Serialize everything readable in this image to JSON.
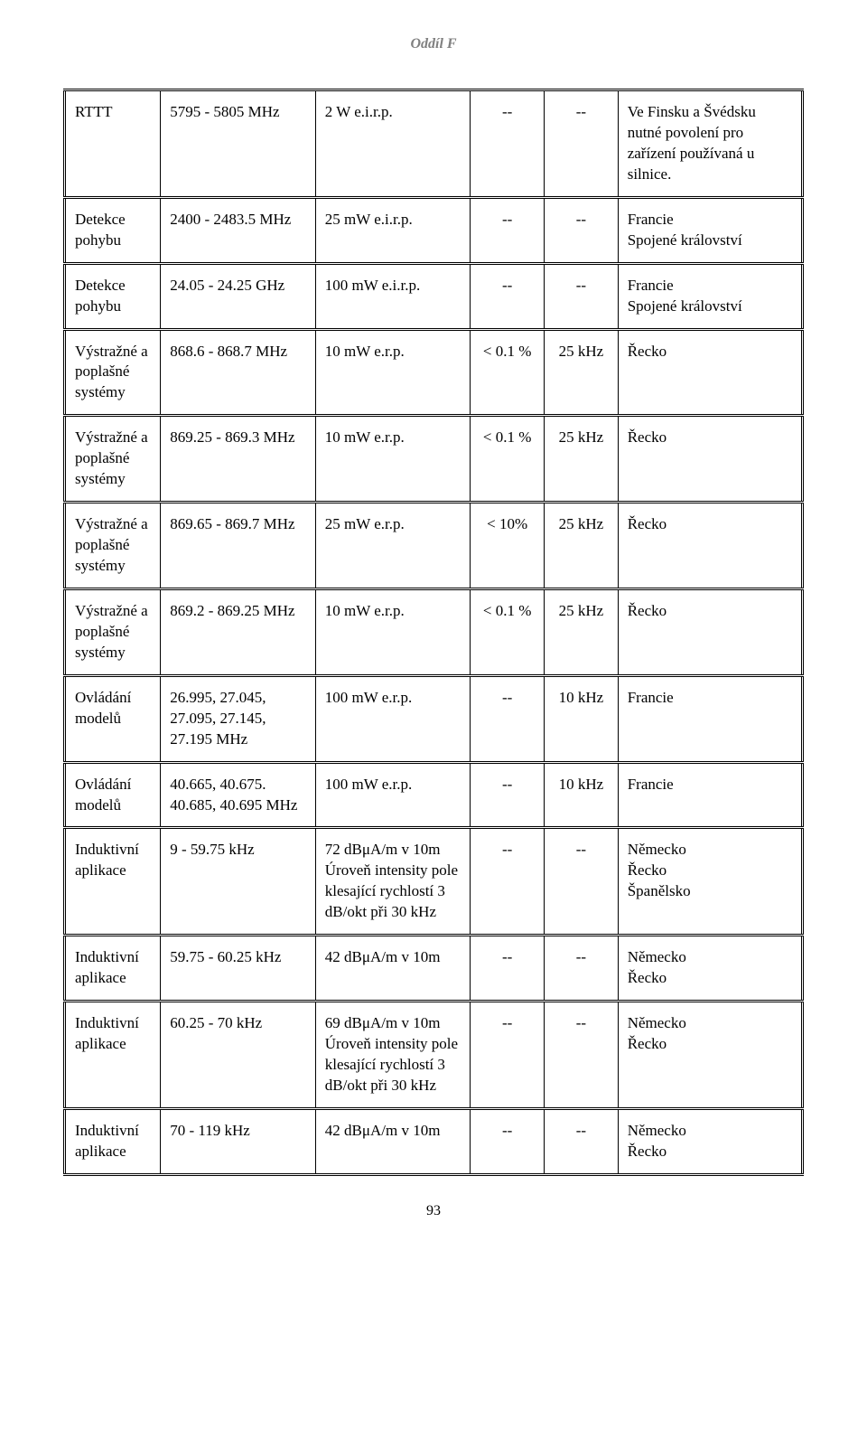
{
  "header": {
    "section": "Oddíl F"
  },
  "table": {
    "columns_count": 6,
    "rows": [
      {
        "c1": "RTTT",
        "c2": "5795 - 5805 MHz",
        "c3": "2 W e.i.r.p.",
        "c4": "--",
        "c5": "--",
        "c6": "Ve Finsku a Švédsku nutné povolení pro zařízení používaná u silnice."
      },
      {
        "c1": "Detekce pohybu",
        "c2": "2400 - 2483.5 MHz",
        "c3": "25 mW e.i.r.p.",
        "c4": "--",
        "c5": "--",
        "c6": "Francie\nSpojené království"
      },
      {
        "c1": "Detekce pohybu",
        "c2": "24.05 - 24.25 GHz",
        "c3": "100 mW e.i.r.p.",
        "c4": "--",
        "c5": "--",
        "c6": "Francie\nSpojené království"
      },
      {
        "c1": "Výstražné a poplašné systémy",
        "c2": "868.6 - 868.7 MHz",
        "c3": "10 mW e.r.p.",
        "c4": "< 0.1 %",
        "c5": "25 kHz",
        "c6": "Řecko"
      },
      {
        "c1": "Výstražné a poplašné systémy",
        "c2": "869.25 - 869.3 MHz",
        "c3": "10 mW e.r.p.",
        "c4": "< 0.1 %",
        "c5": "25 kHz",
        "c6": "Řecko"
      },
      {
        "c1": "Výstražné a poplašné systémy",
        "c2": "869.65 - 869.7 MHz",
        "c3": "25 mW e.r.p.",
        "c4": "< 10%",
        "c5": "25 kHz",
        "c6": "Řecko"
      },
      {
        "c1": "Výstražné a poplašné systémy",
        "c2": "869.2 - 869.25 MHz",
        "c3": "10 mW e.r.p.",
        "c4": "< 0.1 %",
        "c5": "25 kHz",
        "c6": "Řecko"
      },
      {
        "c1": "Ovládání modelů",
        "c2": "26.995, 27.045, 27.095, 27.145, 27.195 MHz",
        "c3": "100 mW e.r.p.",
        "c4": "--",
        "c5": "10 kHz",
        "c6": "Francie"
      },
      {
        "c1": "Ovládání modelů",
        "c2": "40.665, 40.675. 40.685, 40.695 MHz",
        "c3": "100 mW e.r.p.",
        "c4": "--",
        "c5": "10 kHz",
        "c6": "Francie"
      },
      {
        "c1": "Induktivní aplikace",
        "c2": "9 - 59.75 kHz",
        "c3": "72 dBμA/m v 10m Úroveň intensity pole klesající rychlostí 3 dB/okt při 30 kHz",
        "c4": "--",
        "c5": "--",
        "c6": "Německo\nŘecko\nŠpanělsko"
      },
      {
        "c1": "Induktivní aplikace",
        "c2": "59.75 - 60.25 kHz",
        "c3": "42 dBμA/m v 10m",
        "c4": "--",
        "c5": "--",
        "c6": "Německo\nŘecko"
      },
      {
        "c1": "Induktivní aplikace",
        "c2": "60.25 - 70 kHz",
        "c3": "69 dBμA/m v 10m Úroveň intensity pole klesající rychlostí 3 dB/okt při 30 kHz",
        "c4": "--",
        "c5": "--",
        "c6": "Německo\nŘecko"
      },
      {
        "c1": "Induktivní aplikace",
        "c2": "70 - 119 kHz",
        "c3": "42 dBμA/m v 10m",
        "c4": "--",
        "c5": "--",
        "c6": "Německo\nŘecko"
      }
    ]
  },
  "footer": {
    "page_number": "93"
  },
  "style": {
    "background_color": "#ffffff",
    "text_color": "#000000",
    "header_color": "#808080",
    "font_family": "Times New Roman",
    "body_font_size": 17,
    "header_font_size": 16,
    "footer_font_size": 16,
    "border_color": "#000000"
  }
}
